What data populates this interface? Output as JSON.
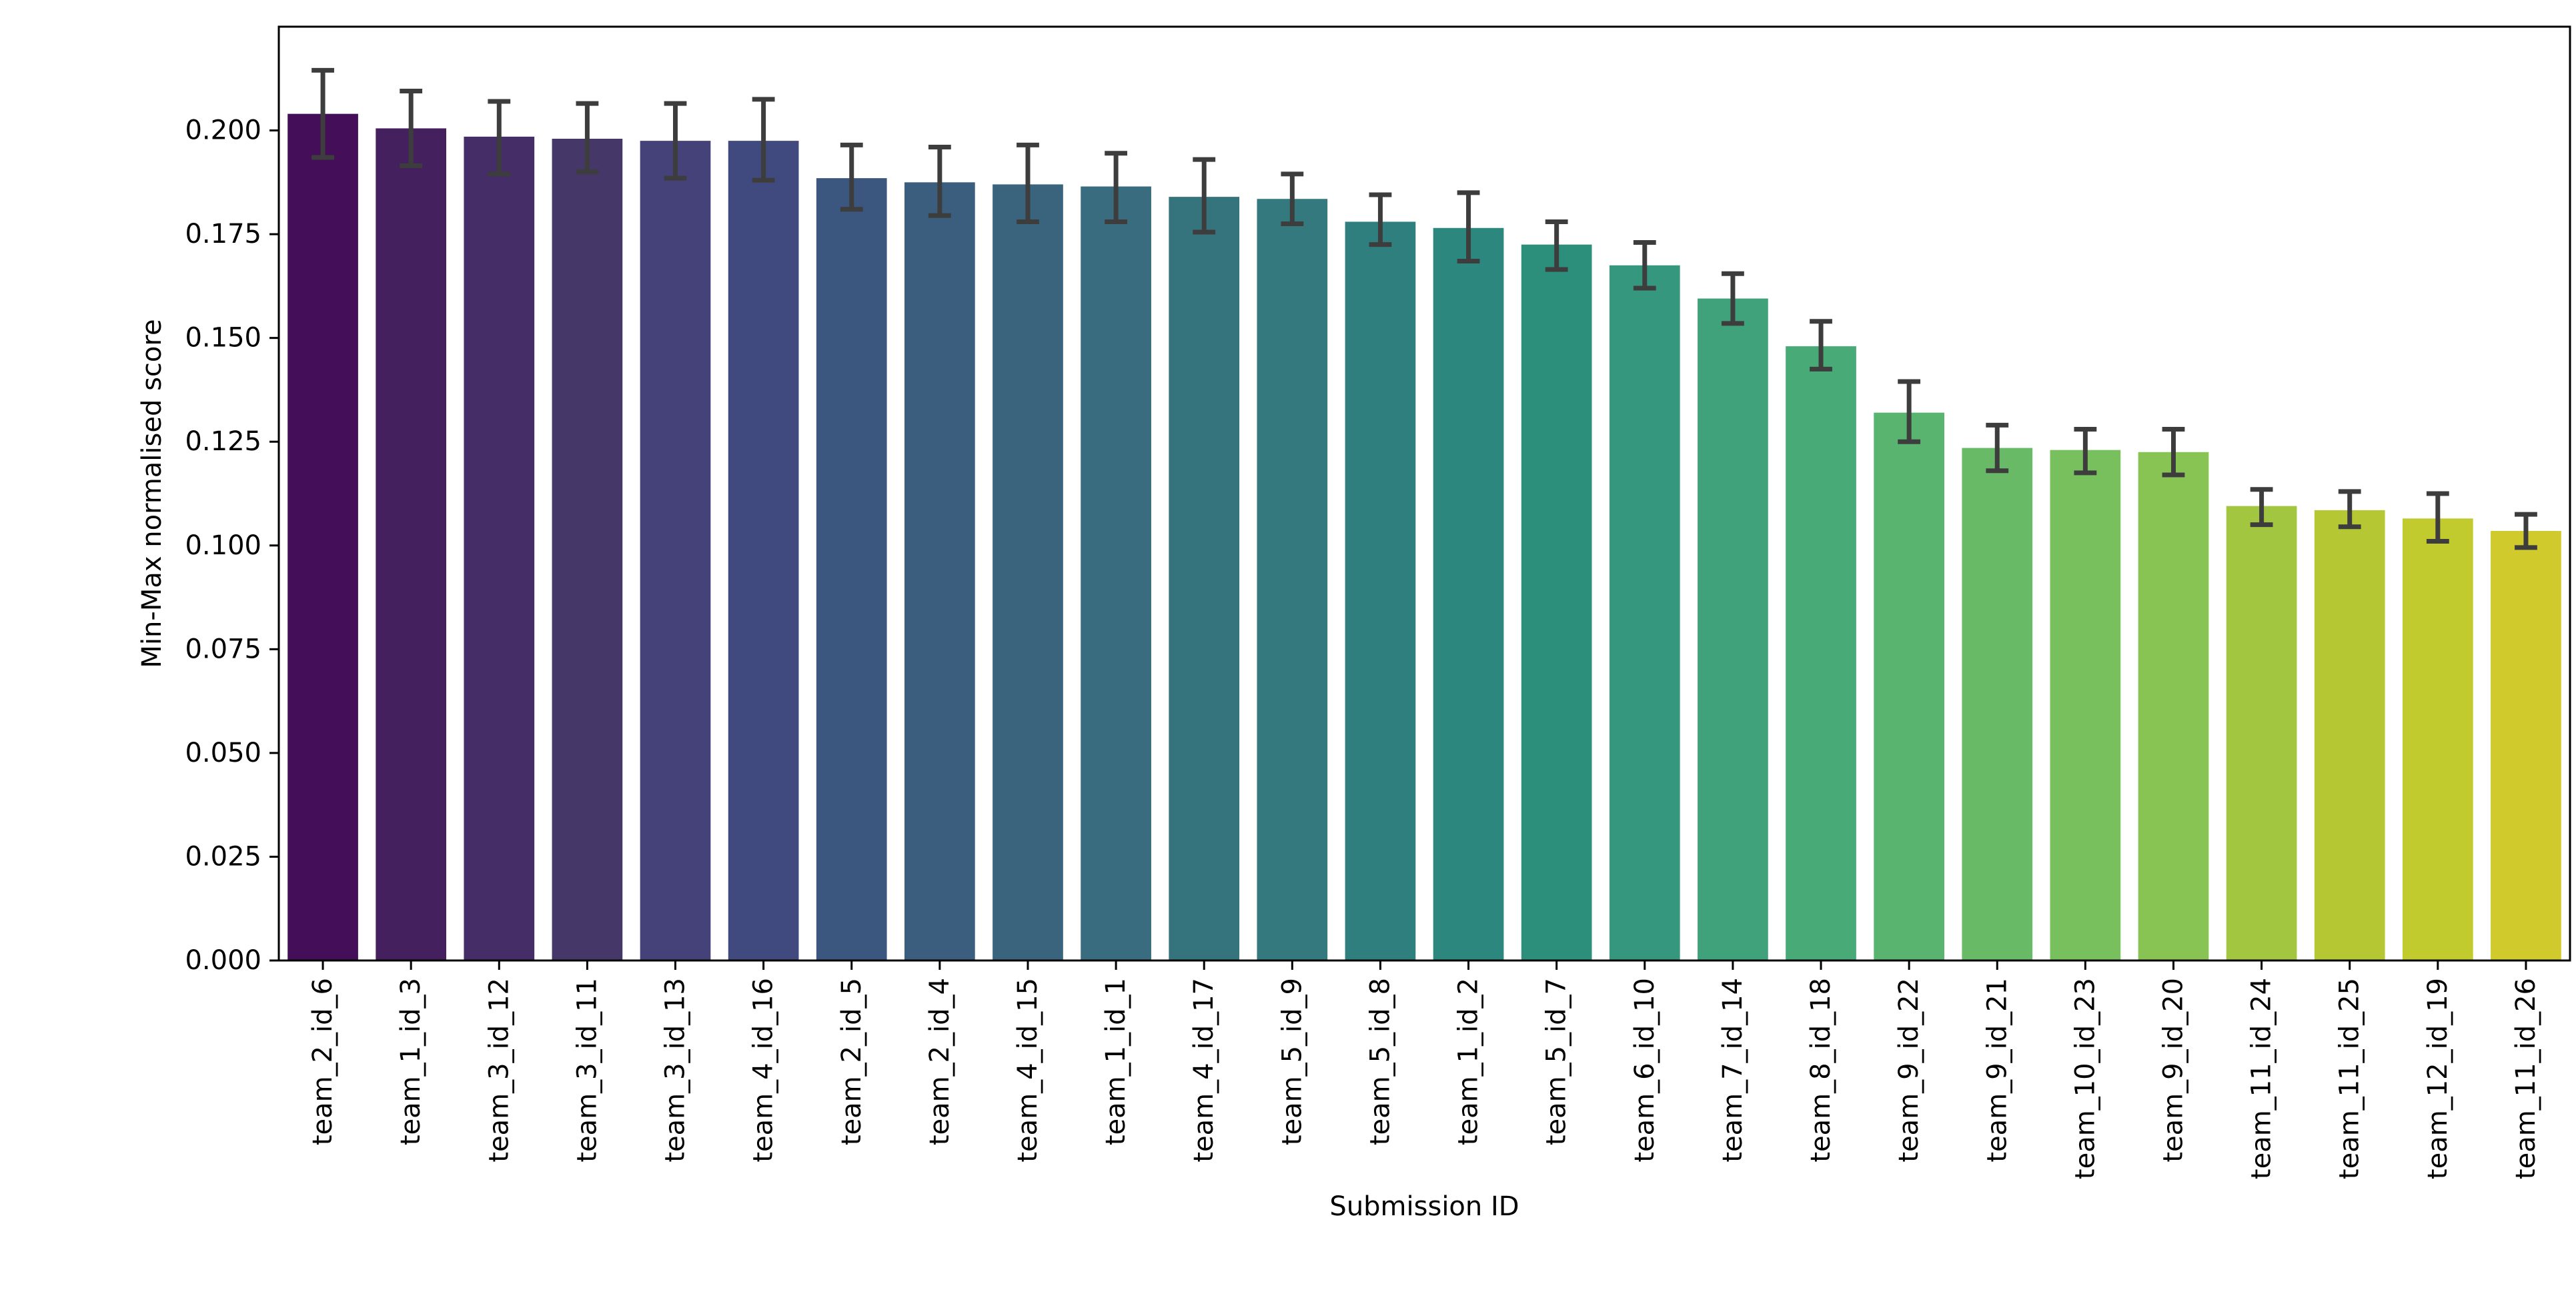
{
  "chart_data": {
    "type": "bar",
    "title": "",
    "xlabel": "Submission ID",
    "ylabel": "Min-Max normalised score",
    "ylim": [
      0,
      0.225
    ],
    "yticks": [
      0.0,
      0.025,
      0.05,
      0.075,
      0.1,
      0.125,
      0.15,
      0.175,
      0.2
    ],
    "ytick_labels": [
      "0.000",
      "0.025",
      "0.050",
      "0.075",
      "0.100",
      "0.125",
      "0.150",
      "0.175",
      "0.200"
    ],
    "grid": false,
    "error_bars": true,
    "colormap": "viridis",
    "colors": [
      "#440e59",
      "#45205f",
      "#452d67",
      "#453768",
      "#454279",
      "#404a7e",
      "#3c577f",
      "#3b5e7e",
      "#3a647d",
      "#396c7e",
      "#35737d",
      "#33797e",
      "#2f7f7e",
      "#2c877e",
      "#2b8f7c",
      "#34977e",
      "#3fa27b",
      "#48aa77",
      "#58b46e",
      "#68ba67",
      "#78c05e",
      "#87c453",
      "#a3c640",
      "#b5c834",
      "#c2cb2e",
      "#d0ca2c"
    ],
    "categories": [
      "team_2_id_6",
      "team_1_id_3",
      "team_3_id_12",
      "team_3_id_11",
      "team_3_id_13",
      "team_4_id_16",
      "team_2_id_5",
      "team_2_id_4",
      "team_4_id_15",
      "team_1_id_1",
      "team_4_id_17",
      "team_5_id_9",
      "team_5_id_8",
      "team_1_id_2",
      "team_5_id_7",
      "team_6_id_10",
      "team_7_id_14",
      "team_8_id_18",
      "team_9_id_22",
      "team_9_id_21",
      "team_10_id_23",
      "team_9_id_20",
      "team_11_id_24",
      "team_11_id_25",
      "team_12_id_19",
      "team_11_id_26"
    ],
    "values": [
      0.204,
      0.2005,
      0.1985,
      0.198,
      0.1975,
      0.1975,
      0.1885,
      0.1875,
      0.187,
      0.1865,
      0.184,
      0.1835,
      0.178,
      0.1765,
      0.1725,
      0.1675,
      0.1595,
      0.148,
      0.132,
      0.1235,
      0.123,
      0.1225,
      0.1095,
      0.1085,
      0.1065,
      0.1035
    ],
    "error_low": [
      0.1935,
      0.1915,
      0.1895,
      0.19,
      0.1885,
      0.188,
      0.181,
      0.1795,
      0.178,
      0.178,
      0.1755,
      0.1775,
      0.1725,
      0.1685,
      0.1665,
      0.162,
      0.1535,
      0.1425,
      0.125,
      0.118,
      0.1175,
      0.117,
      0.105,
      0.1045,
      0.101,
      0.0995
    ],
    "error_high": [
      0.2145,
      0.2095,
      0.207,
      0.2065,
      0.2065,
      0.2075,
      0.1965,
      0.196,
      0.1965,
      0.1945,
      0.193,
      0.1895,
      0.1845,
      0.185,
      0.178,
      0.173,
      0.1655,
      0.154,
      0.1395,
      0.129,
      0.128,
      0.128,
      0.1135,
      0.113,
      0.1125,
      0.1075
    ]
  }
}
